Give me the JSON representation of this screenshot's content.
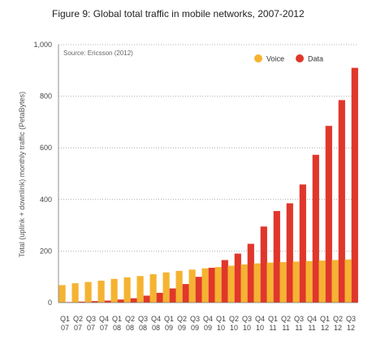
{
  "chart_data": {
    "type": "bar",
    "title": "Figure 9: Global total traffic in mobile networks, 2007-2012",
    "source": "Source: Ericsson (2012)",
    "ylabel": "Total (uplink + downlink) monthly traffic (PetaBytes)",
    "xlabel": "",
    "ylim": [
      0,
      1000
    ],
    "yticks": [
      0,
      200,
      400,
      600,
      800,
      1000
    ],
    "ytick_labels": [
      "0",
      "200",
      "400",
      "600",
      "800",
      "1,000"
    ],
    "grid": true,
    "legend": "top-right",
    "categories": [
      [
        "Q1",
        "07"
      ],
      [
        "Q2",
        "07"
      ],
      [
        "Q3",
        "07"
      ],
      [
        "Q4",
        "07"
      ],
      [
        "Q1",
        "08"
      ],
      [
        "Q2",
        "08"
      ],
      [
        "Q3",
        "08"
      ],
      [
        "Q4",
        "08"
      ],
      [
        "Q1",
        "09"
      ],
      [
        "Q2",
        "09"
      ],
      [
        "Q3",
        "09"
      ],
      [
        "Q4",
        "09"
      ],
      [
        "Q1",
        "10"
      ],
      [
        "Q2",
        "10"
      ],
      [
        "Q3",
        "10"
      ],
      [
        "Q4",
        "10"
      ],
      [
        "Q1",
        "11"
      ],
      [
        "Q2",
        "11"
      ],
      [
        "Q3",
        "11"
      ],
      [
        "Q4",
        "11"
      ],
      [
        "Q1",
        "12"
      ],
      [
        "Q2",
        "12"
      ],
      [
        "Q3",
        "12"
      ]
    ],
    "series": [
      {
        "name": "Voice",
        "color": "#F5B332",
        "values": [
          68,
          75,
          80,
          85,
          92,
          98,
          103,
          110,
          117,
          123,
          128,
          133,
          138,
          143,
          148,
          152,
          155,
          157,
          159,
          161,
          163,
          165,
          167
        ]
      },
      {
        "name": "Data",
        "color": "#E0372B",
        "values": [
          2,
          4,
          6,
          8,
          12,
          17,
          27,
          38,
          55,
          72,
          100,
          135,
          165,
          190,
          228,
          295,
          355,
          385,
          458,
          573,
          685,
          785,
          910
        ]
      }
    ]
  }
}
